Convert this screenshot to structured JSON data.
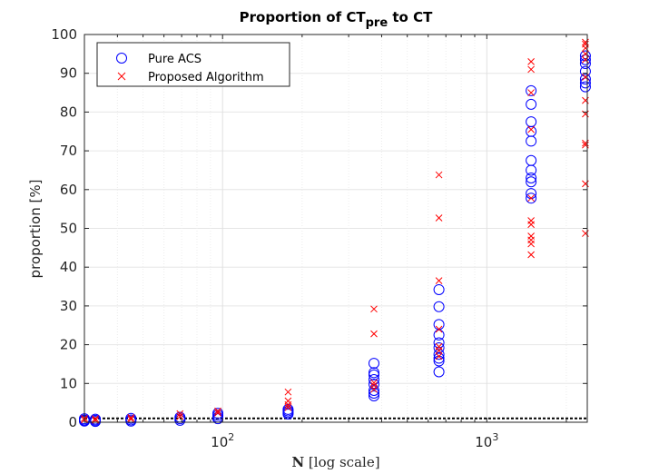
{
  "chart_data": {
    "type": "scatter",
    "title": {
      "main": "Proportion of CT",
      "sub": "pre",
      "tail": " to CT"
    },
    "xlabel": {
      "bold": "N",
      "rest": " [log scale]"
    },
    "ylabel": "proportion [%]",
    "x_scale": "log",
    "xlim": [
      30,
      2400
    ],
    "ylim": [
      0,
      100
    ],
    "y_ticks": [
      0,
      10,
      20,
      30,
      40,
      50,
      60,
      70,
      80,
      90,
      100
    ],
    "x_ticks": [
      {
        "base": "10",
        "exp": "2",
        "value": 100
      },
      {
        "base": "10",
        "exp": "3",
        "value": 1000
      }
    ],
    "grid": true,
    "legend_position": "top-left",
    "reference_line": {
      "y": 1,
      "style": "dashed",
      "color": "#000000"
    },
    "series": [
      {
        "name": "Pure ACS",
        "marker": "circle",
        "color": "#0000ff",
        "points": [
          [
            30,
            0.3
          ],
          [
            30,
            0.6
          ],
          [
            30,
            0.9
          ],
          [
            30,
            0.5
          ],
          [
            33,
            0.2
          ],
          [
            33,
            0.5
          ],
          [
            33,
            0.8
          ],
          [
            45,
            0.3
          ],
          [
            45,
            0.6
          ],
          [
            45,
            1.0
          ],
          [
            69,
            0.5
          ],
          [
            69,
            0.9
          ],
          [
            69,
            1.3
          ],
          [
            96,
            0.9
          ],
          [
            96,
            1.3
          ],
          [
            96,
            1.8
          ],
          [
            96,
            2.3
          ],
          [
            177,
            2.1
          ],
          [
            177,
            2.5
          ],
          [
            177,
            2.9
          ],
          [
            177,
            3.3
          ],
          [
            374,
            6.8
          ],
          [
            374,
            7.5
          ],
          [
            374,
            8.2
          ],
          [
            374,
            9.8
          ],
          [
            374,
            11.0
          ],
          [
            374,
            12.2
          ],
          [
            374,
            12.8
          ],
          [
            374,
            15.2
          ],
          [
            659,
            13.0
          ],
          [
            659,
            15.8
          ],
          [
            659,
            16.5
          ],
          [
            659,
            17.5
          ],
          [
            659,
            19.2
          ],
          [
            659,
            20.5
          ],
          [
            659,
            22.5
          ],
          [
            659,
            25.2
          ],
          [
            659,
            29.8
          ],
          [
            659,
            34.2
          ],
          [
            1471,
            57.8
          ],
          [
            1471,
            59.0
          ],
          [
            1471,
            62.0
          ],
          [
            1471,
            63.0
          ],
          [
            1471,
            65.0
          ],
          [
            1471,
            67.5
          ],
          [
            1471,
            72.5
          ],
          [
            1471,
            75.0
          ],
          [
            1471,
            77.5
          ],
          [
            1471,
            82.0
          ],
          [
            1471,
            85.5
          ],
          [
            2361,
            86.5
          ],
          [
            2361,
            87.5
          ],
          [
            2361,
            88.5
          ],
          [
            2361,
            90.5
          ],
          [
            2361,
            92.5
          ],
          [
            2361,
            93.5
          ],
          [
            2361,
            94.5
          ]
        ]
      },
      {
        "name": "Proposed Algorithm",
        "marker": "cross",
        "color": "#ff0000",
        "points": [
          [
            30,
            0.6
          ],
          [
            30,
            1.0
          ],
          [
            33,
            0.5
          ],
          [
            33,
            0.9
          ],
          [
            45,
            0.8
          ],
          [
            45,
            1.2
          ],
          [
            69,
            1.5
          ],
          [
            69,
            2.2
          ],
          [
            96,
            2.4
          ],
          [
            96,
            2.9
          ],
          [
            177,
            3.8
          ],
          [
            177,
            4.5
          ],
          [
            177,
            5.5
          ],
          [
            177,
            7.8
          ],
          [
            374,
            8.5
          ],
          [
            374,
            9.5
          ],
          [
            374,
            10.2
          ],
          [
            374,
            22.8
          ],
          [
            374,
            29.2
          ],
          [
            659,
            17.0
          ],
          [
            659,
            18.5
          ],
          [
            659,
            19.5
          ],
          [
            659,
            24.0
          ],
          [
            659,
            36.5
          ],
          [
            659,
            52.7
          ],
          [
            659,
            63.8
          ],
          [
            1471,
            43.2
          ],
          [
            1471,
            46.0
          ],
          [
            1471,
            47.0
          ],
          [
            1471,
            48.0
          ],
          [
            1471,
            51.0
          ],
          [
            1471,
            52.0
          ],
          [
            1471,
            57.8
          ],
          [
            1471,
            75.5
          ],
          [
            1471,
            85.0
          ],
          [
            1471,
            91.0
          ],
          [
            1471,
            93.0
          ],
          [
            2361,
            48.7
          ],
          [
            2361,
            61.5
          ],
          [
            2361,
            71.5
          ],
          [
            2361,
            72.0
          ],
          [
            2361,
            79.5
          ],
          [
            2361,
            83.0
          ],
          [
            2361,
            89.0
          ],
          [
            2361,
            93.5
          ],
          [
            2361,
            95.0
          ],
          [
            2361,
            96.5
          ],
          [
            2361,
            97.5
          ],
          [
            2361,
            98.0
          ]
        ]
      }
    ]
  }
}
